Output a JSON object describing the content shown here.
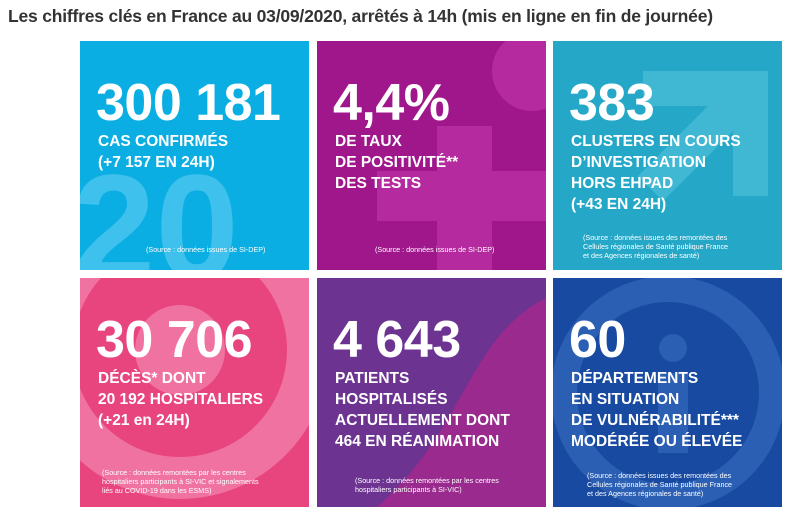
{
  "header": {
    "title": "Les chiffres clés en France au 03/09/2020, arrêtés à 14h (mis en ligne en fin de journée)"
  },
  "colors": {
    "cases": "#0aaee3",
    "positivity": "#a0178c",
    "clusters": "#25a8c8",
    "deaths": "#e8457f",
    "hospital": "#6d3391",
    "departments": "#174aa0"
  },
  "tiles": {
    "cases": {
      "value": "300 181",
      "lines": [
        "CAS CONFIRMÉS",
        "(+7 157 EN 24H)"
      ],
      "source": [
        "(Source : données issues de SI-DEP)"
      ]
    },
    "positivity": {
      "value": "4,4%",
      "lines": [
        "DE TAUX",
        "DE POSITIVITÉ**",
        "DES TESTS"
      ],
      "source": [
        "(Source : données issues de SI-DEP)"
      ]
    },
    "clusters": {
      "value": "383",
      "lines": [
        "CLUSTERS EN COURS",
        "D’INVESTIGATION",
        "HORS EHPAD",
        "(+43 EN 24H)"
      ],
      "source": [
        "(Source : données issues des remontées des",
        "Cellules régionales de Santé publique France",
        "et des Agences régionales de santé)"
      ]
    },
    "deaths": {
      "value": "30 706",
      "lines": [
        "DÉCÈS* DONT",
        "20 192 HOSPITALIERS",
        "(+21 en 24H)"
      ],
      "source": [
        "(Source : données remontées par les centres",
        "hospitaliers participants à SI-VIC et signalements",
        "liés au COVID-19 dans les ESMS)"
      ]
    },
    "hospital": {
      "value": "4 643",
      "lines": [
        "PATIENTS",
        "HOSPITALISÉS",
        "ACTUELLEMENT DONT",
        "464 EN RÉANIMATION"
      ],
      "source": [
        "(Source : données remontées par les centres",
        "hospitaliers participants à SI-VIC)"
      ]
    },
    "departments": {
      "value": "60",
      "lines": [
        "DÉPARTEMENTS",
        "EN SITUATION",
        "DE VULNÉRABILITÉ***",
        "MODÉRÉE OU ÉLEVÉE"
      ],
      "source": [
        "(Source : données issues des remontées des",
        "Cellules régionales de Santé publique France",
        "et des Agences régionales de santé)"
      ]
    }
  }
}
